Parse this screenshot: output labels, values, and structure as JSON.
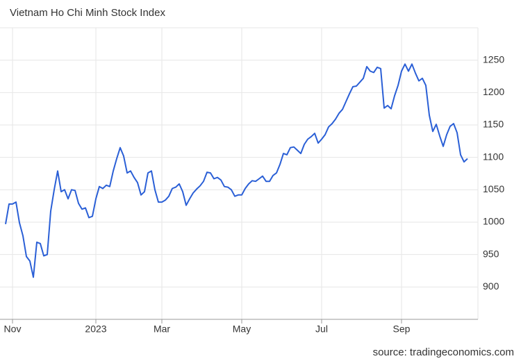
{
  "chart_data": {
    "type": "line",
    "title": "Vietnam Ho Chi Minh Stock Index",
    "source": "source: tradingeconomics.com",
    "categories": [
      null,
      null,
      "Nov",
      null,
      null,
      null,
      null,
      null,
      null,
      null,
      null,
      null,
      null,
      null,
      null,
      null,
      null,
      null,
      null,
      null,
      null,
      null,
      null,
      null,
      null,
      null,
      "2023",
      null,
      null,
      null,
      null,
      null,
      null,
      null,
      null,
      null,
      null,
      null,
      null,
      null,
      null,
      null,
      null,
      null,
      null,
      "Mar",
      null,
      null,
      null,
      null,
      null,
      null,
      null,
      null,
      null,
      null,
      null,
      null,
      null,
      null,
      null,
      null,
      null,
      null,
      null,
      null,
      null,
      null,
      "May",
      null,
      null,
      null,
      null,
      null,
      null,
      null,
      null,
      null,
      null,
      null,
      null,
      null,
      null,
      null,
      null,
      null,
      null,
      null,
      null,
      null,
      null,
      "Jul",
      null,
      null,
      null,
      null,
      null,
      null,
      null,
      null,
      null,
      null,
      null,
      null,
      null,
      null,
      null,
      null,
      null,
      null,
      null,
      null,
      null,
      null,
      "Sep",
      null,
      null,
      null,
      null,
      null,
      null,
      null,
      null,
      null,
      null,
      null,
      null,
      null,
      null,
      null,
      null,
      null,
      null,
      null
    ],
    "series": [
      {
        "name": "Vietnam Ho Chi Minh Stock Index",
        "color": "#2a5fd6",
        "values": [
          997,
          1028,
          1028,
          1031,
          999,
          979,
          947,
          940,
          915,
          969,
          967,
          948,
          950,
          1017,
          1050,
          1079,
          1047,
          1050,
          1036,
          1050,
          1049,
          1029,
          1020,
          1022,
          1007,
          1009,
          1036,
          1055,
          1052,
          1057,
          1055,
          1079,
          1098,
          1115,
          1102,
          1076,
          1079,
          1069,
          1061,
          1042,
          1047,
          1076,
          1079,
          1050,
          1031,
          1031,
          1034,
          1040,
          1052,
          1054,
          1059,
          1047,
          1026,
          1036,
          1045,
          1051,
          1056,
          1063,
          1077,
          1076,
          1067,
          1069,
          1065,
          1055,
          1054,
          1050,
          1040,
          1042,
          1042,
          1052,
          1059,
          1064,
          1063,
          1067,
          1071,
          1063,
          1063,
          1072,
          1076,
          1089,
          1106,
          1104,
          1115,
          1116,
          1111,
          1106,
          1120,
          1128,
          1132,
          1137,
          1122,
          1128,
          1135,
          1147,
          1152,
          1159,
          1168,
          1174,
          1186,
          1198,
          1209,
          1210,
          1216,
          1222,
          1240,
          1233,
          1231,
          1239,
          1237,
          1176,
          1180,
          1175,
          1195,
          1211,
          1233,
          1244,
          1233,
          1244,
          1230,
          1218,
          1222,
          1211,
          1165,
          1140,
          1151,
          1133,
          1117,
          1135,
          1148,
          1152,
          1138,
          1104,
          1093,
          1098
        ]
      }
    ],
    "ylim": [
      850,
      1300
    ],
    "yticks": [
      900,
      950,
      1000,
      1050,
      1100,
      1150,
      1200,
      1250
    ],
    "grid": true
  }
}
